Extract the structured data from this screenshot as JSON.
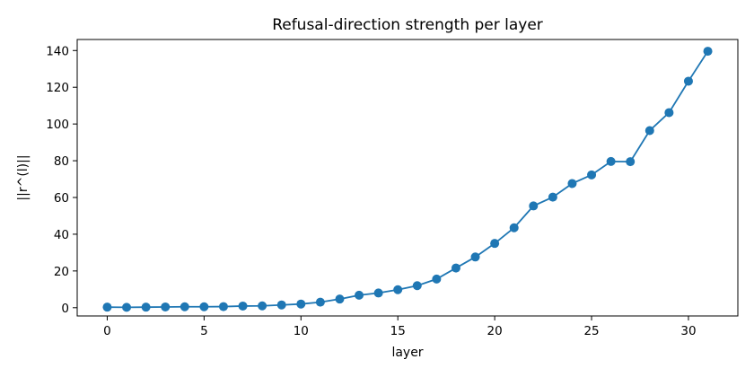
{
  "chart_data": {
    "type": "line",
    "title": "Refusal-direction strength per layer",
    "xlabel": "layer",
    "ylabel": "||r^(l)||",
    "xlim": [
      -1.55,
      32.55
    ],
    "ylim": [
      -4.5,
      146.0
    ],
    "xticks": [
      0,
      5,
      10,
      15,
      20,
      25,
      30
    ],
    "yticks": [
      0,
      20,
      40,
      60,
      80,
      100,
      120,
      140
    ],
    "grid": false,
    "legend": "none",
    "series": [
      {
        "color": "#1f77b4",
        "marker": "circle",
        "x": [
          0,
          1,
          2,
          3,
          4,
          5,
          6,
          7,
          8,
          9,
          10,
          11,
          12,
          13,
          14,
          15,
          16,
          17,
          18,
          19,
          20,
          21,
          22,
          23,
          24,
          25,
          26,
          27,
          28,
          29,
          30,
          31
        ],
        "values": [
          0.3,
          0.2,
          0.3,
          0.4,
          0.5,
          0.5,
          0.6,
          0.9,
          1.0,
          1.5,
          2.0,
          3.0,
          4.7,
          6.8,
          8.0,
          9.8,
          12.0,
          15.6,
          21.6,
          27.6,
          35.0,
          43.5,
          55.4,
          60.2,
          67.6,
          72.3,
          79.6,
          79.5,
          96.4,
          106.2,
          123.3,
          139.6
        ]
      }
    ]
  }
}
